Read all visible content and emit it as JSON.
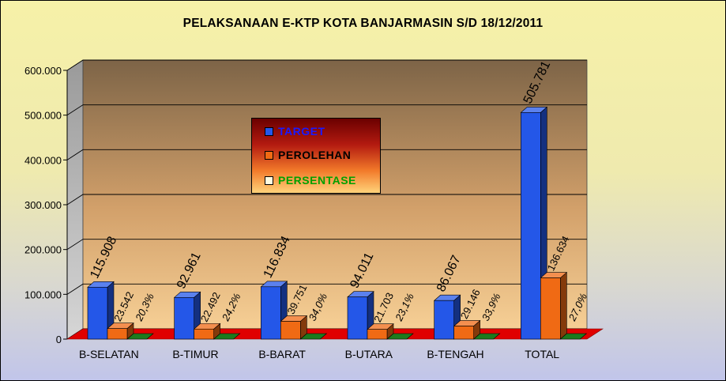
{
  "chart_data": {
    "type": "bar",
    "title": "PELAKSANAAN E-KTP KOTA BANJARMASIN S/D  18/12/2011",
    "categories": [
      "B-SELATAN",
      "B-TIMUR",
      "B-BARAT",
      "B-UTARA",
      "B-TENGAH",
      "TOTAL"
    ],
    "series": [
      {
        "name": "TARGET",
        "color": "#2457e8",
        "values": [
          115908,
          92961,
          116834,
          94011,
          86067,
          505781
        ],
        "labels": [
          "115.908",
          "92.961",
          "116.834",
          "94.011",
          "86.067",
          "505.781"
        ]
      },
      {
        "name": "PEROLEHAN",
        "color": "#f06a14",
        "values": [
          23542,
          22492,
          39751,
          21703,
          29146,
          136634
        ],
        "labels": [
          "23.542",
          "22.492",
          "39.751",
          "21.703",
          "29.146",
          "136.634"
        ]
      },
      {
        "name": "PERSENTASE",
        "color": "#1d7a1d",
        "legend_swatch": "#fffde0",
        "values": [
          20.3,
          24.2,
          34.0,
          23.1,
          33.9,
          27.0
        ],
        "labels": [
          "20,3%",
          "24,2%",
          "34,0%",
          "23,1%",
          "33,9%",
          "27,0%"
        ]
      }
    ],
    "ylim": [
      0,
      600000
    ],
    "yticks": [
      0,
      100000,
      200000,
      300000,
      400000,
      500000,
      600000
    ],
    "ytick_labels": [
      "0",
      "100.000",
      "200.000",
      "300.000",
      "400.000",
      "500.000",
      "600.000"
    ],
    "grid": true,
    "legend_position": "center-top",
    "legend_text_colors": [
      "#1a1aff",
      "#000000",
      "#00a000"
    ],
    "floor_color": "#e00000"
  }
}
